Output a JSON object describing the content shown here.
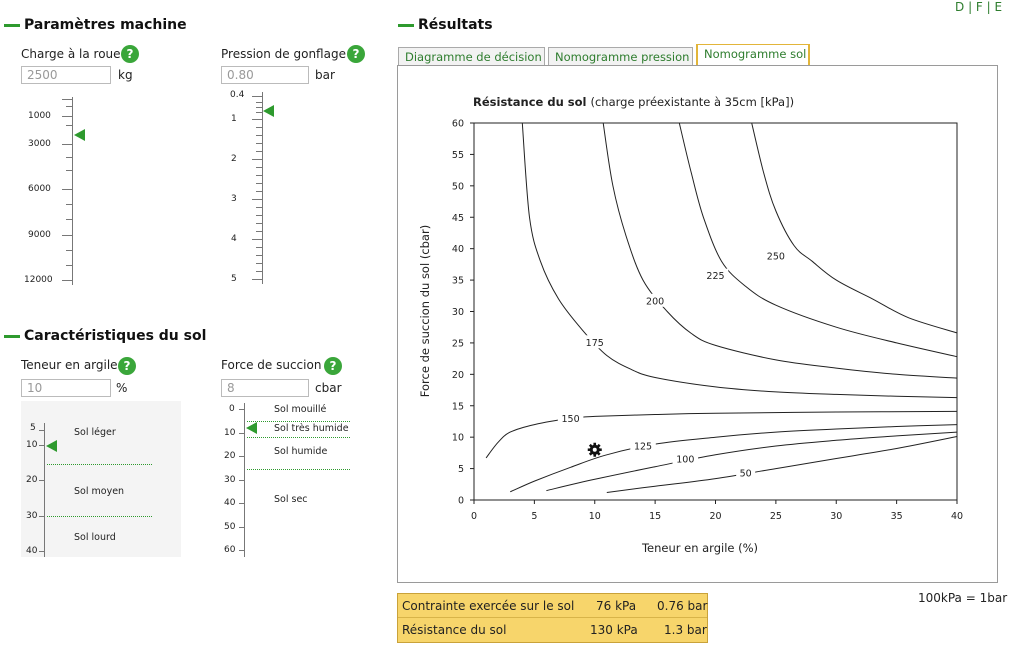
{
  "languages": [
    "D",
    "F",
    "E"
  ],
  "machine": {
    "title": "Paramètres machine",
    "load": {
      "label": "Charge à la roue",
      "value": "2500",
      "unit": "kg",
      "ticks": [
        "1000",
        "3000",
        "6000",
        "9000",
        "12000"
      ]
    },
    "pressure": {
      "label": "Pression de gonflage",
      "value": "0.80",
      "unit": "bar",
      "ticks": [
        "0.4",
        "1",
        "2",
        "3",
        "4",
        "5"
      ]
    }
  },
  "soil": {
    "title": "Caractéristiques du sol",
    "clay": {
      "label": "Teneur en argile",
      "value": "10",
      "unit": "%",
      "ticks": [
        "5",
        "10",
        "20",
        "30",
        "40"
      ],
      "zones": [
        "Sol léger",
        "Sol moyen",
        "Sol lourd"
      ]
    },
    "suction": {
      "label": "Force de succion",
      "value": "8",
      "unit": "cbar",
      "ticks": [
        "0",
        "10",
        "20",
        "30",
        "40",
        "50",
        "60"
      ],
      "zones": [
        "Sol mouillé",
        "Sol très humide",
        "Sol humide",
        "Sol sec"
      ]
    }
  },
  "results": {
    "title": "Résultats",
    "tabs": [
      {
        "label": "Diagramme de décision",
        "active": false
      },
      {
        "label": "Nomogramme pression",
        "active": false
      },
      {
        "label": "Nomogramme sol",
        "active": true
      }
    ],
    "rows": [
      {
        "label": "Contrainte exercée sur le sol",
        "kpa": "76 kPa",
        "bar": "0.76 bar"
      },
      {
        "label": "Résistance du sol",
        "kpa": "130 kPa",
        "bar": "1.3 bar"
      }
    ],
    "conversion_note": "100kPa = 1bar"
  },
  "chart_data": {
    "type": "line",
    "title": "Résistance du sol",
    "subtitle": "(charge préexistante à 35cm [kPa])",
    "xlabel": "Teneur en argile (%)",
    "ylabel": "Force de succion du sol (cbar)",
    "xlim": [
      0,
      40
    ],
    "ylim": [
      0,
      60
    ],
    "x_ticks": [
      0,
      5,
      10,
      15,
      20,
      25,
      30,
      35,
      40
    ],
    "y_ticks": [
      0,
      5,
      10,
      15,
      20,
      25,
      30,
      35,
      40,
      45,
      50,
      55,
      60
    ],
    "grid": false,
    "series": [
      {
        "name": "50",
        "label_at": [
          22.5,
          4.3
        ],
        "points": [
          [
            11,
            1.2
          ],
          [
            15,
            2.2
          ],
          [
            20,
            3.4
          ],
          [
            25,
            5.0
          ],
          [
            30,
            6.6
          ],
          [
            35,
            8.2
          ],
          [
            40,
            10.1
          ]
        ]
      },
      {
        "name": "100",
        "label_at": [
          17.5,
          6.5
        ],
        "points": [
          [
            6,
            1.5
          ],
          [
            10,
            3.3
          ],
          [
            15,
            5.3
          ],
          [
            20,
            7.2
          ],
          [
            25,
            8.6
          ],
          [
            30,
            9.5
          ],
          [
            35,
            10.2
          ],
          [
            40,
            10.8
          ]
        ]
      },
      {
        "name": "125",
        "label_at": [
          14,
          8.6
        ],
        "points": [
          [
            3,
            1.3
          ],
          [
            5,
            3.0
          ],
          [
            8,
            5.2
          ],
          [
            11,
            7.2
          ],
          [
            15,
            8.9
          ],
          [
            20,
            10.0
          ],
          [
            25,
            10.8
          ],
          [
            30,
            11.3
          ],
          [
            35,
            11.7
          ],
          [
            40,
            12.0
          ]
        ]
      },
      {
        "name": "150",
        "label_at": [
          8,
          13.0
        ],
        "points": [
          [
            1,
            6.7
          ],
          [
            2,
            9.2
          ],
          [
            3,
            10.8
          ],
          [
            5,
            12.0
          ],
          [
            8,
            13.0
          ],
          [
            10,
            13.3
          ],
          [
            15,
            13.6
          ],
          [
            20,
            13.8
          ],
          [
            30,
            14.0
          ],
          [
            40,
            14.1
          ]
        ]
      },
      {
        "name": "175",
        "label_at": [
          10,
          25.1
        ],
        "points": [
          [
            4,
            60
          ],
          [
            4.6,
            45
          ],
          [
            5.5,
            38
          ],
          [
            7,
            32
          ],
          [
            9,
            27
          ],
          [
            11,
            23
          ],
          [
            13,
            20.8
          ],
          [
            15,
            19.5
          ],
          [
            20,
            18.0
          ],
          [
            25,
            17.2
          ],
          [
            30,
            16.8
          ],
          [
            35,
            16.5
          ],
          [
            40,
            16.3
          ]
        ]
      },
      {
        "name": "200",
        "label_at": [
          15,
          31.7
        ],
        "points": [
          [
            10.7,
            60
          ],
          [
            11.5,
            50
          ],
          [
            12.6,
            42
          ],
          [
            14,
            35
          ],
          [
            16,
            30
          ],
          [
            18,
            26.5
          ],
          [
            20,
            24.6
          ],
          [
            25,
            22.3
          ],
          [
            30,
            21.0
          ],
          [
            35,
            20.0
          ],
          [
            40,
            19.4
          ]
        ]
      },
      {
        "name": "225",
        "label_at": [
          20,
          35.7
        ],
        "points": [
          [
            17,
            60
          ],
          [
            18,
            52
          ],
          [
            19,
            45
          ],
          [
            20.5,
            38
          ],
          [
            22.5,
            34
          ],
          [
            25,
            31
          ],
          [
            30,
            27.5
          ],
          [
            35,
            25
          ],
          [
            40,
            22.8
          ]
        ]
      },
      {
        "name": "250",
        "label_at": [
          25,
          38.8
        ],
        "points": [
          [
            23,
            60
          ],
          [
            24,
            52
          ],
          [
            25,
            46
          ],
          [
            26.5,
            40.5
          ],
          [
            28,
            38
          ],
          [
            30,
            35
          ],
          [
            33,
            32
          ],
          [
            36,
            29
          ],
          [
            40,
            26.6
          ]
        ]
      }
    ],
    "marker": {
      "x": 10,
      "y": 8,
      "icon": "gear-icon"
    }
  },
  "colors": {
    "accent": "#2e9a2e",
    "result_bg": "#f7d56b",
    "active_tab": "#e2b53a"
  }
}
